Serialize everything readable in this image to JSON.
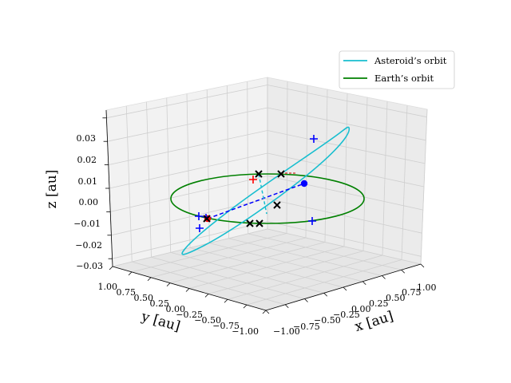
{
  "chart_data": {
    "type": "3d-line",
    "xlabel": "x [au]",
    "ylabel": "y [au]",
    "zlabel": "z [au]",
    "x_ticks": [
      "−1.00",
      "−0.75",
      "−0.50",
      "−0.25",
      "0.00",
      "0.25",
      "0.50",
      "0.75",
      "1.00"
    ],
    "y_ticks": [
      "−1.00",
      "−0.75",
      "−0.50",
      "−0.25",
      "0.00",
      "0.25",
      "0.50",
      "0.75",
      "1.00"
    ],
    "z_ticks": [
      "−0.03",
      "−0.02",
      "−0.01",
      "0.00",
      "0.01",
      "0.02",
      "0.03"
    ],
    "grid": true,
    "legend_position": "top-right",
    "legend": [
      {
        "label": "Asteroid’s orbit",
        "color": "#17becf"
      },
      {
        "label": "Earth’s orbit",
        "color": "#008000"
      }
    ],
    "series": [
      {
        "name": "Asteroid’s orbit",
        "color": "#17becf",
        "style": "solid"
      },
      {
        "name": "Earth’s orbit",
        "color": "#008000",
        "style": "solid"
      }
    ],
    "markers": {
      "red_points": 1,
      "blue_points": 1,
      "blue_plus": 5,
      "red_plus": 1,
      "black_x": 6
    }
  }
}
